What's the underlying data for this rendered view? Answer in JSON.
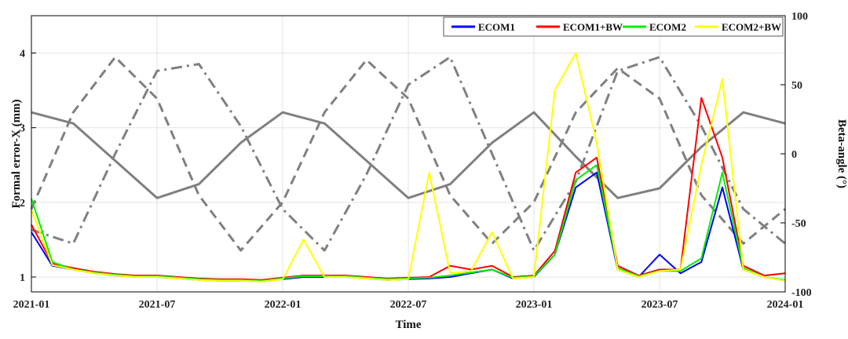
{
  "chart_data": {
    "type": "line",
    "xlabel": "Time",
    "ylabel": "Formal error-X (mm)",
    "y2label": "Beta-angle (°)",
    "xlim": [
      "2021-01",
      "2024-01"
    ],
    "ylim": [
      0.8,
      4.5
    ],
    "y2lim": [
      -100,
      100
    ],
    "x_ticks": [
      "2021-01",
      "2021-07",
      "2022-01",
      "2022-07",
      "2023-01",
      "2023-07",
      "2024-01"
    ],
    "y_ticks": [
      "1",
      "2",
      "3",
      "4"
    ],
    "y2_ticks": [
      "-100",
      "-50",
      "0",
      "50",
      "100"
    ],
    "grid": true,
    "legend_position": "top-right",
    "series": [
      {
        "name": "ECOM1",
        "color": "#0000ff",
        "x": [
          "2021-01",
          "2021-02",
          "2021-03",
          "2021-04",
          "2021-05",
          "2021-06",
          "2021-07",
          "2021-08",
          "2021-09",
          "2021-10",
          "2021-11",
          "2021-12",
          "2022-01",
          "2022-02",
          "2022-03",
          "2022-04",
          "2022-05",
          "2022-06",
          "2022-07",
          "2022-08",
          "2022-09",
          "2022-10",
          "2022-11",
          "2022-12",
          "2023-01",
          "2023-02",
          "2023-03",
          "2023-04",
          "2023-05",
          "2023-06",
          "2023-07",
          "2023-08",
          "2023-09",
          "2023-10",
          "2023-11",
          "2023-12",
          "2024-01"
        ],
        "values": [
          1.6,
          1.15,
          1.1,
          1.05,
          1.02,
          1.0,
          1.0,
          0.98,
          0.96,
          0.95,
          0.95,
          0.94,
          0.97,
          1.0,
          1.0,
          1.0,
          0.98,
          0.96,
          0.97,
          0.98,
          1.0,
          1.05,
          1.1,
          0.98,
          1.0,
          1.3,
          2.2,
          2.4,
          1.1,
          1.0,
          1.3,
          1.05,
          1.2,
          2.2,
          1.1,
          1.0,
          0.95
        ]
      },
      {
        "name": "ECOM1+BW",
        "color": "#ff0000",
        "x": [
          "2021-01",
          "2021-02",
          "2021-03",
          "2021-04",
          "2021-05",
          "2021-06",
          "2021-07",
          "2021-08",
          "2021-09",
          "2021-10",
          "2021-11",
          "2021-12",
          "2022-01",
          "2022-02",
          "2022-03",
          "2022-04",
          "2022-05",
          "2022-06",
          "2022-07",
          "2022-08",
          "2022-09",
          "2022-10",
          "2022-11",
          "2022-12",
          "2023-01",
          "2023-02",
          "2023-03",
          "2023-04",
          "2023-05",
          "2023-06",
          "2023-07",
          "2023-08",
          "2023-09",
          "2023-10",
          "2023-11",
          "2023-12",
          "2024-01"
        ],
        "values": [
          1.7,
          1.18,
          1.12,
          1.07,
          1.04,
          1.02,
          1.02,
          1.0,
          0.98,
          0.97,
          0.97,
          0.96,
          0.99,
          1.02,
          1.02,
          1.02,
          1.0,
          0.98,
          0.99,
          1.0,
          1.15,
          1.1,
          1.15,
          1.0,
          1.02,
          1.35,
          2.4,
          2.6,
          1.15,
          1.02,
          1.1,
          1.1,
          3.4,
          2.6,
          1.15,
          1.02,
          1.05
        ]
      },
      {
        "name": "ECOM2",
        "color": "#00ee00",
        "x": [
          "2021-01",
          "2021-02",
          "2021-03",
          "2021-04",
          "2021-05",
          "2021-06",
          "2021-07",
          "2021-08",
          "2021-09",
          "2021-10",
          "2021-11",
          "2021-12",
          "2022-01",
          "2022-02",
          "2022-03",
          "2022-04",
          "2022-05",
          "2022-06",
          "2022-07",
          "2022-08",
          "2022-09",
          "2022-10",
          "2022-11",
          "2022-12",
          "2023-01",
          "2023-02",
          "2023-03",
          "2023-04",
          "2023-05",
          "2023-06",
          "2023-07",
          "2023-08",
          "2023-09",
          "2023-10",
          "2023-11",
          "2023-12",
          "2024-01"
        ],
        "values": [
          2.05,
          1.2,
          1.1,
          1.06,
          1.03,
          1.01,
          1.01,
          0.99,
          0.97,
          0.96,
          0.96,
          0.95,
          0.98,
          1.01,
          1.01,
          1.01,
          0.99,
          0.97,
          0.98,
          0.99,
          1.02,
          1.06,
          1.1,
          0.99,
          1.01,
          1.3,
          2.3,
          2.5,
          1.12,
          1.01,
          1.08,
          1.08,
          1.25,
          2.4,
          1.12,
          1.0,
          0.96
        ]
      },
      {
        "name": "ECOM2+BW",
        "color": "#ffff00",
        "x": [
          "2021-01",
          "2021-02",
          "2021-03",
          "2021-04",
          "2021-05",
          "2021-06",
          "2021-07",
          "2021-08",
          "2021-09",
          "2021-10",
          "2021-11",
          "2021-12",
          "2022-01",
          "2022-02",
          "2022-03",
          "2022-04",
          "2022-05",
          "2022-06",
          "2022-07",
          "2022-08",
          "2022-09",
          "2022-10",
          "2022-11",
          "2022-12",
          "2023-01",
          "2023-02",
          "2023-03",
          "2023-04",
          "2023-05",
          "2023-06",
          "2023-07",
          "2023-08",
          "2023-09",
          "2023-10",
          "2023-11",
          "2023-12",
          "2024-01"
        ],
        "values": [
          1.9,
          1.16,
          1.1,
          1.05,
          1.02,
          1.0,
          1.0,
          0.98,
          0.96,
          0.95,
          0.95,
          0.94,
          0.97,
          1.5,
          1.0,
          1.0,
          0.98,
          0.96,
          0.97,
          2.4,
          1.05,
          1.08,
          1.6,
          0.98,
          1.0,
          3.5,
          4.0,
          2.8,
          1.1,
          1.0,
          1.08,
          1.1,
          2.5,
          3.65,
          1.1,
          1.0,
          0.95
        ]
      },
      {
        "name": "",
        "color": "#808080",
        "style": "solid",
        "axis": "right",
        "x": [
          "2021-01",
          "2021-03",
          "2021-05",
          "2021-07",
          "2021-09",
          "2021-11",
          "2022-01",
          "2022-03",
          "2022-05",
          "2022-07",
          "2022-09",
          "2022-11",
          "2023-01",
          "2023-03",
          "2023-05",
          "2023-07",
          "2023-09",
          "2023-11",
          "2024-01"
        ],
        "values": [
          30,
          22,
          -5,
          -32,
          -22,
          8,
          30,
          22,
          -5,
          -32,
          -22,
          8,
          30,
          -2,
          -32,
          -25,
          5,
          30,
          22
        ]
      },
      {
        "name": "",
        "color": "#808080",
        "style": "dashed",
        "axis": "right",
        "x": [
          "2021-01",
          "2021-03",
          "2021-05",
          "2021-07",
          "2021-09",
          "2021-11",
          "2022-01",
          "2022-03",
          "2022-05",
          "2022-07",
          "2022-09",
          "2022-11",
          "2023-01",
          "2023-03",
          "2023-05",
          "2023-07",
          "2023-09",
          "2023-11",
          "2024-01"
        ],
        "values": [
          -40,
          30,
          70,
          40,
          -30,
          -70,
          -35,
          30,
          68,
          40,
          -30,
          -65,
          -35,
          30,
          62,
          40,
          -30,
          -65,
          -40
        ]
      },
      {
        "name": "",
        "color": "#808080",
        "style": "dashdot",
        "axis": "right",
        "x": [
          "2021-01",
          "2021-03",
          "2021-05",
          "2021-07",
          "2021-09",
          "2021-11",
          "2022-01",
          "2022-03",
          "2022-05",
          "2022-07",
          "2022-09",
          "2022-11",
          "2023-01",
          "2023-03",
          "2023-05",
          "2023-07",
          "2023-09",
          "2023-11",
          "2024-01"
        ],
        "values": [
          -55,
          -65,
          0,
          60,
          65,
          20,
          -40,
          -70,
          -15,
          50,
          70,
          0,
          -70,
          -20,
          60,
          70,
          20,
          -40,
          -65
        ]
      }
    ]
  }
}
